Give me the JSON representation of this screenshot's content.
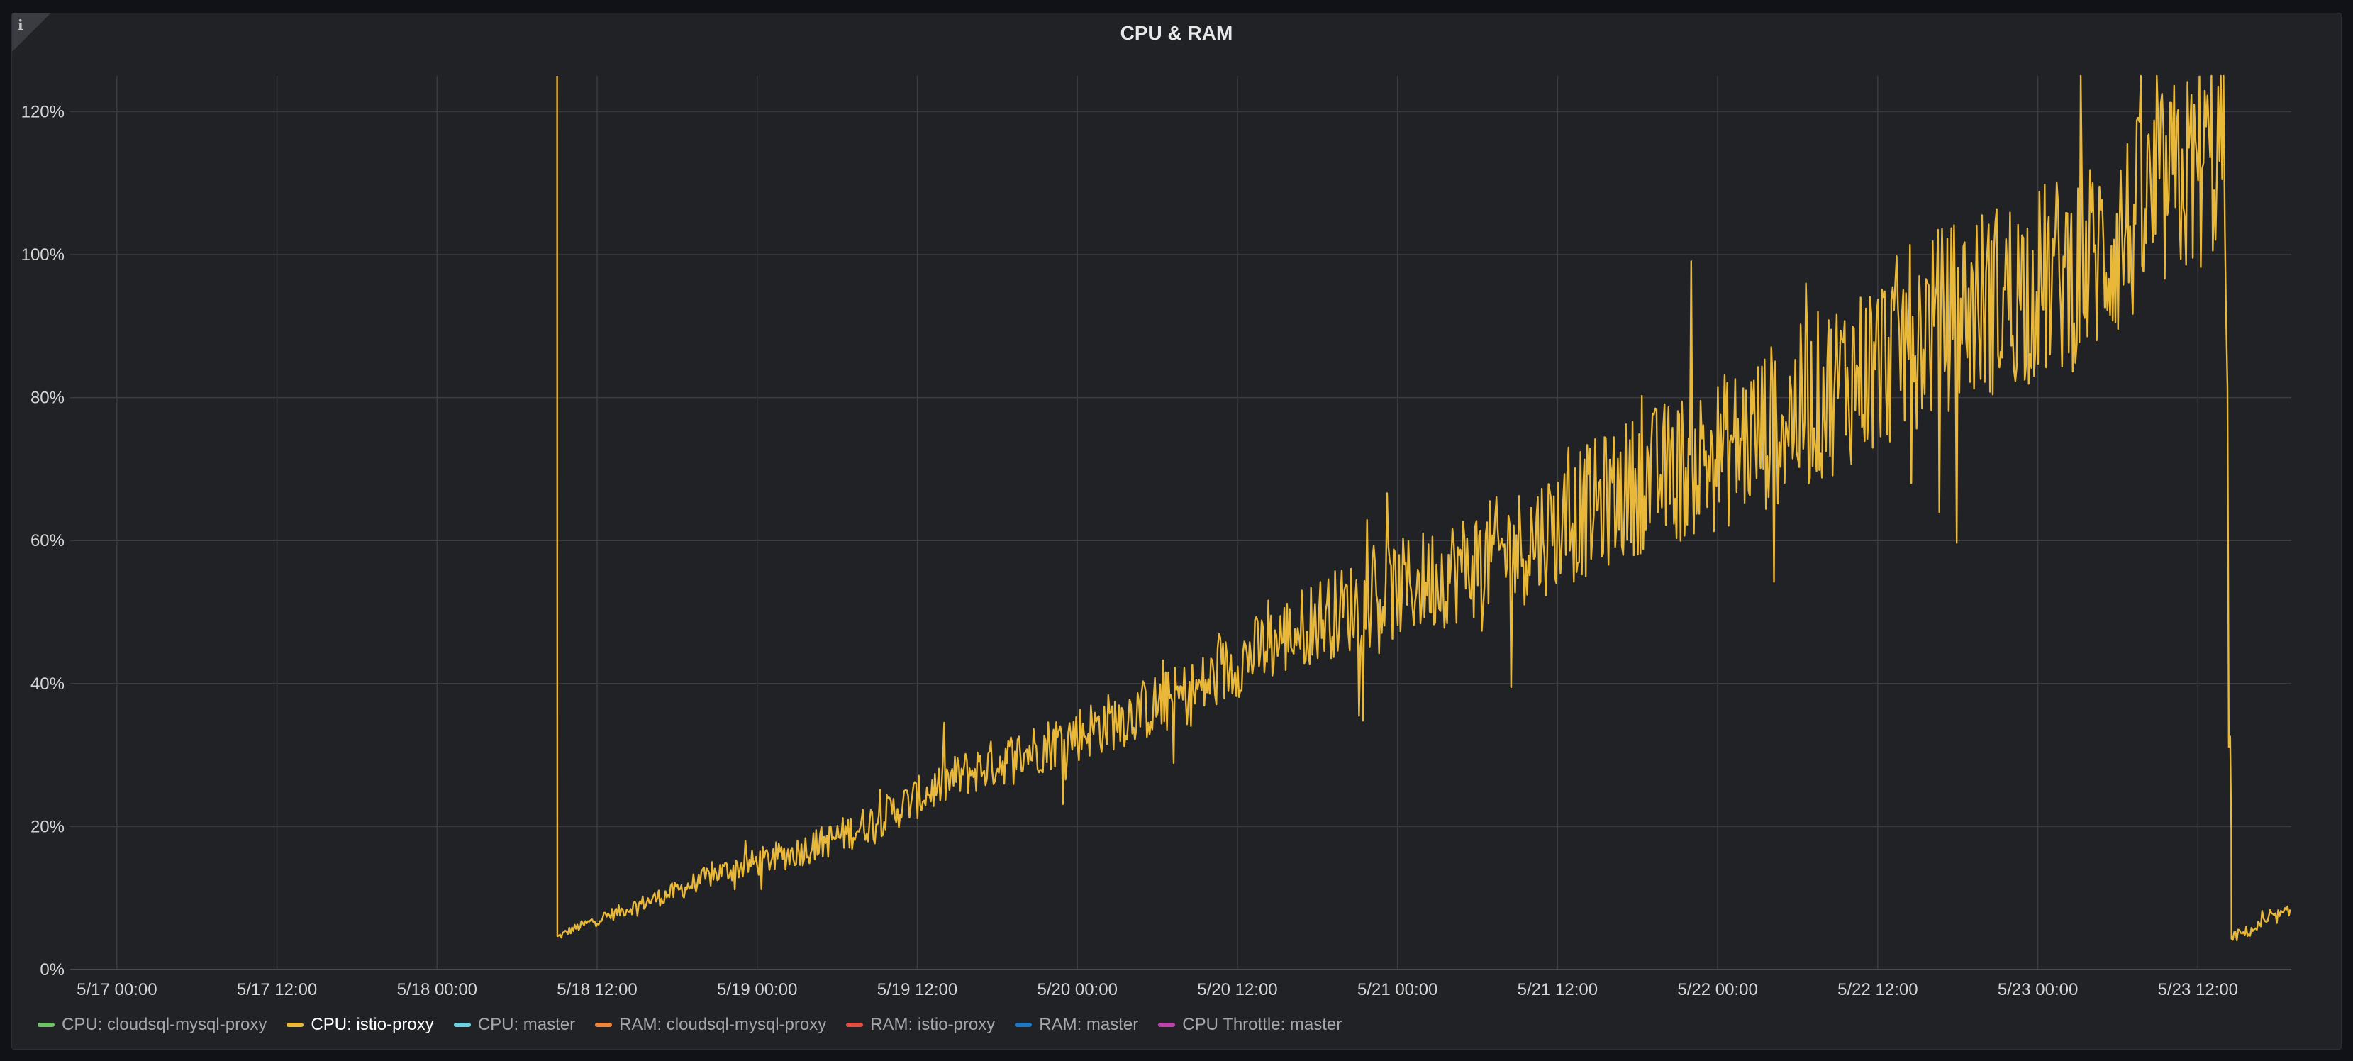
{
  "panel": {
    "info_glyph": "i",
    "title": "CPU & RAM"
  },
  "chart_data": {
    "type": "line",
    "title": "CPU & RAM",
    "xlabel": "",
    "ylabel": "",
    "x_range": [
      "5/16 20:30",
      "5/23 19:00"
    ],
    "ylim": [
      0,
      125
    ],
    "y_unit": "%",
    "y_ticks": [
      "0%",
      "20%",
      "40%",
      "60%",
      "80%",
      "100%",
      "120%"
    ],
    "x_ticks": [
      "5/17 00:00",
      "5/17 12:00",
      "5/18 00:00",
      "5/18 12:00",
      "5/19 00:00",
      "5/19 12:00",
      "5/20 00:00",
      "5/20 12:00",
      "5/21 00:00",
      "5/21 12:00",
      "5/22 00:00",
      "5/22 12:00",
      "5/23 00:00",
      "5/23 12:00"
    ],
    "grid": true,
    "legend_placement": "bottom-left",
    "series_visible": "CPU: istio-proxy",
    "series": [
      {
        "name": "CPU: istio-proxy",
        "color": "#eab839",
        "points": [
          [
            "5/18 09:00",
            125
          ],
          [
            "5/18 09:01",
            4.5
          ],
          [
            "5/18 10:00",
            5.5
          ],
          [
            "5/18 12:00",
            7
          ],
          [
            "5/18 15:00",
            9
          ],
          [
            "5/18 18:00",
            11
          ],
          [
            "5/18 21:00",
            13.5
          ],
          [
            "5/19 00:00",
            15
          ],
          [
            "5/19 03:00",
            16.5
          ],
          [
            "5/19 06:00",
            18.5
          ],
          [
            "5/19 09:00",
            21
          ],
          [
            "5/19 12:00",
            24
          ],
          [
            "5/19 15:00",
            27
          ],
          [
            "5/19 18:00",
            29
          ],
          [
            "5/19 21:00",
            31
          ],
          [
            "5/20 00:00",
            33
          ],
          [
            "5/20 03:00",
            35
          ],
          [
            "5/20 06:00",
            37
          ],
          [
            "5/20 09:00",
            39
          ],
          [
            "5/20 12:00",
            43
          ],
          [
            "5/20 15:00",
            46
          ],
          [
            "5/20 18:00",
            49
          ],
          [
            "5/20 21:00",
            51
          ],
          [
            "5/21 00:00",
            53
          ],
          [
            "5/21 03:00",
            55
          ],
          [
            "5/21 06:00",
            57
          ],
          [
            "5/21 09:00",
            59
          ],
          [
            "5/21 12:00",
            62
          ],
          [
            "5/21 15:00",
            65
          ],
          [
            "5/21 18:00",
            68
          ],
          [
            "5/21 21:00",
            70
          ],
          [
            "5/22 00:00",
            72
          ],
          [
            "5/22 03:00",
            75
          ],
          [
            "5/22 06:00",
            78
          ],
          [
            "5/22 09:00",
            82
          ],
          [
            "5/22 12:00",
            85
          ],
          [
            "5/22 15:00",
            89
          ],
          [
            "5/22 18:00",
            92
          ],
          [
            "5/22 21:00",
            94
          ],
          [
            "5/23 00:00",
            96
          ],
          [
            "5/23 03:00",
            98
          ],
          [
            "5/23 06:00",
            102
          ],
          [
            "5/23 09:00",
            108
          ],
          [
            "5/23 12:00",
            112
          ],
          [
            "5/23 14:00",
            115
          ],
          [
            "5/23 14:30",
            4.5
          ],
          [
            "5/23 16:00",
            5.5
          ],
          [
            "5/23 18:00",
            7.5
          ],
          [
            "5/23 19:00",
            8
          ]
        ],
        "noise_amplitude": [
          [
            "5/18 09:01",
            0.5
          ],
          [
            "5/19 00:00",
            2
          ],
          [
            "5/20 00:00",
            4
          ],
          [
            "5/20 12:00",
            5
          ],
          [
            "5/21 00:00",
            7
          ],
          [
            "5/21 12:00",
            9
          ],
          [
            "5/22 00:00",
            11
          ],
          [
            "5/22 12:00",
            13
          ],
          [
            "5/23 00:00",
            14
          ],
          [
            "5/23 12:00",
            15
          ],
          [
            "5/23 14:29",
            15
          ],
          [
            "5/23 14:30",
            0.8
          ],
          [
            "5/23 19:00",
            1
          ]
        ]
      }
    ]
  },
  "legend": [
    {
      "label": "CPU: cloudsql-mysql-proxy",
      "color": "#73bf69",
      "active": false
    },
    {
      "label": "CPU: istio-proxy",
      "color": "#eab839",
      "active": true
    },
    {
      "label": "CPU: master",
      "color": "#6ed0e0",
      "active": false
    },
    {
      "label": "RAM: cloudsql-mysql-proxy",
      "color": "#ef843c",
      "active": false
    },
    {
      "label": "RAM: istio-proxy",
      "color": "#e24d42",
      "active": false
    },
    {
      "label": "RAM: master",
      "color": "#1f78c1",
      "active": false
    },
    {
      "label": "CPU Throttle: master",
      "color": "#ba43a9",
      "active": false
    }
  ]
}
